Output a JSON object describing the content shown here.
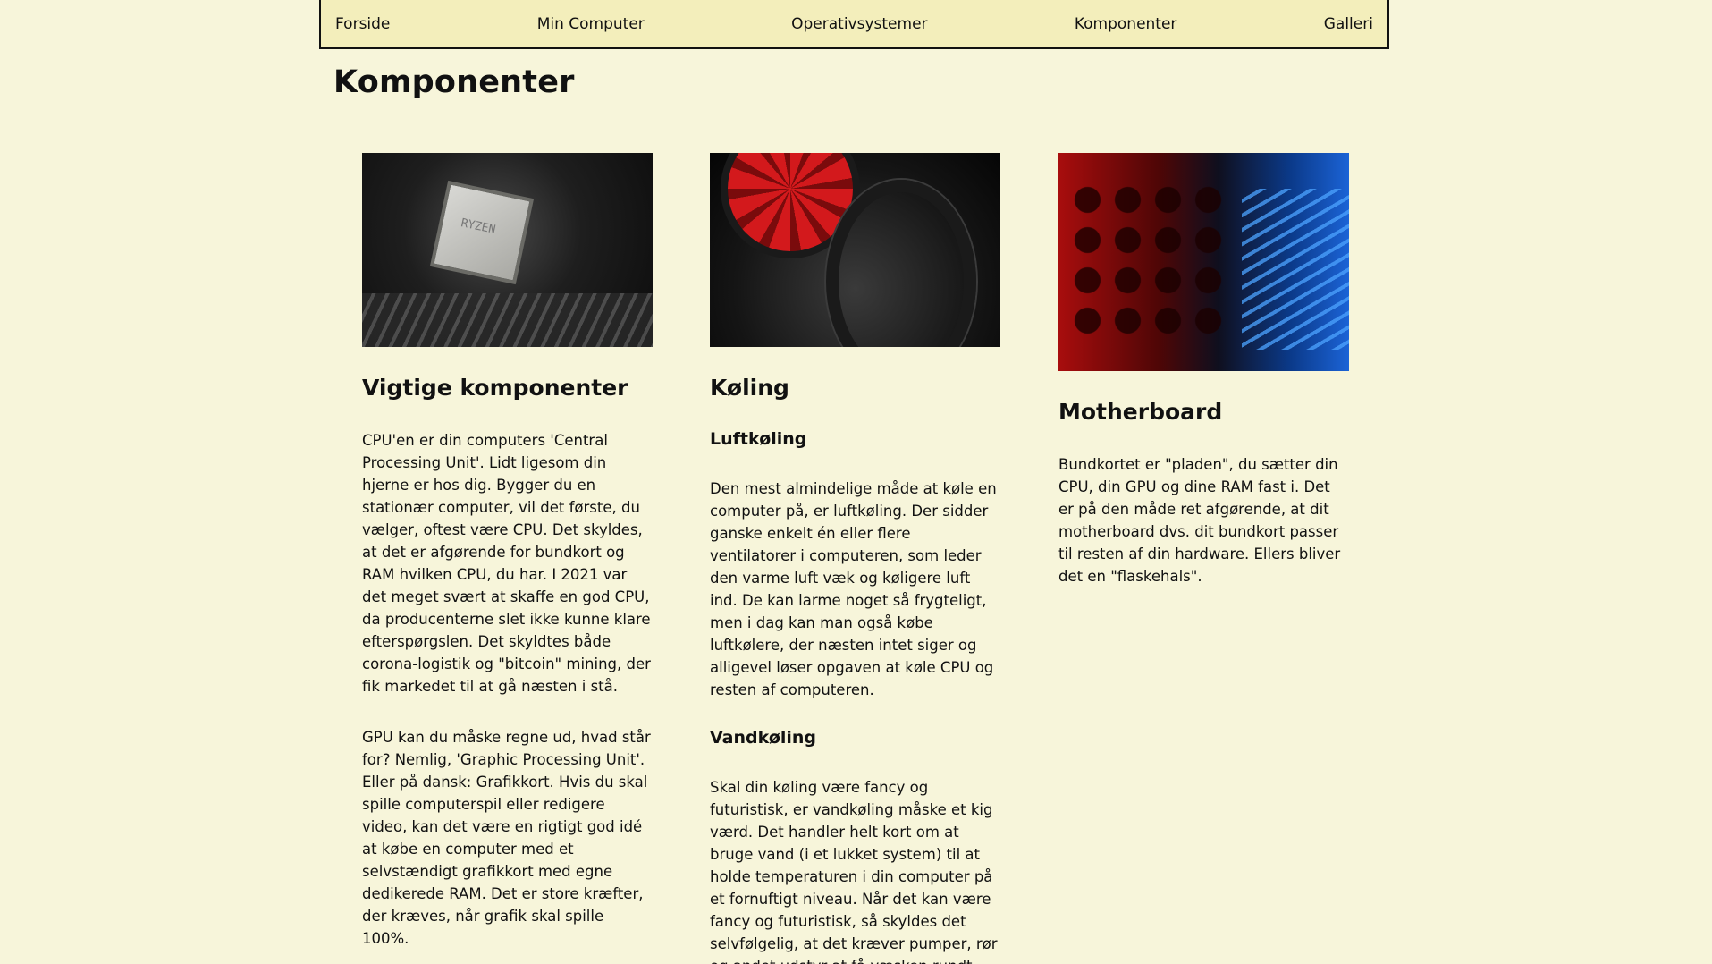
{
  "nav": {
    "items": [
      {
        "label": "Forside"
      },
      {
        "label": "Min Computer"
      },
      {
        "label": "Operativsystemer"
      },
      {
        "label": "Komponenter"
      },
      {
        "label": "Galleri"
      }
    ]
  },
  "page": {
    "title": "Komponenter"
  },
  "columns": {
    "components": {
      "image_label": "RYZEN",
      "heading": "Vigtige komponenter",
      "paragraphs": [
        "CPU'en er din computers 'Central Processing Unit'. Lidt ligesom din hjerne er hos dig. Bygger du en stationær computer, vil det første, du vælger, oftest være CPU. Det skyldes, at det er afgørende for bundkort og RAM hvilken CPU, du har. I 2021 var det meget svært at skaffe en god CPU, da producenterne slet ikke kunne klare efterspørgslen. Det skyldtes både corona-logistik og \"bitcoin\" mining, der fik markedet til at gå næsten i stå.",
        "GPU kan du måske regne ud, hvad står for? Nemlig, 'Graphic Processing Unit'. Eller på dansk: Grafikkort. Hvis du skal spille computerspil eller redigere video, kan det være en rigtigt god idé at købe en computer med et selvstændigt grafikkort med egne dedikerede RAM. Det er store kræfter, der kræves, når grafik skal spille 100%."
      ]
    },
    "cooling": {
      "heading": "Køling",
      "air_heading": "Luftkøling",
      "air_text": "Den mest almindelige måde at køle en computer på, er luftkøling. Der sidder ganske enkelt én eller flere ventilatorer i computeren, som leder den varme luft væk og køligere luft ind. De kan larme noget så frygteligt, men i dag kan man også købe luftkølere, der næsten intet siger og alligevel løser opgaven at køle CPU og resten af computeren.",
      "water_heading": "Vandkøling",
      "water_text": "Skal din køling være fancy og futuristisk, er vandkøling måske et kig værd. Det handler helt kort om at bruge vand (i et lukket system) til at holde temperaturen i din computer på et fornuftigt niveau. Når det kan være fancy og futuristisk, så skyldes det selvfølgelig, at det kræver pumper, rør og andet udstyr at få væsken rundt."
    },
    "motherboard": {
      "heading": "Motherboard",
      "text": "Bundkortet er \"pladen\", du sætter din CPU, din GPU og dine RAM fast i. Det er på den måde ret afgørende, at dit motherboard dvs. dit bundkort passer til resten af din hardware. Ellers bliver det en \"flaskehals\"."
    }
  }
}
